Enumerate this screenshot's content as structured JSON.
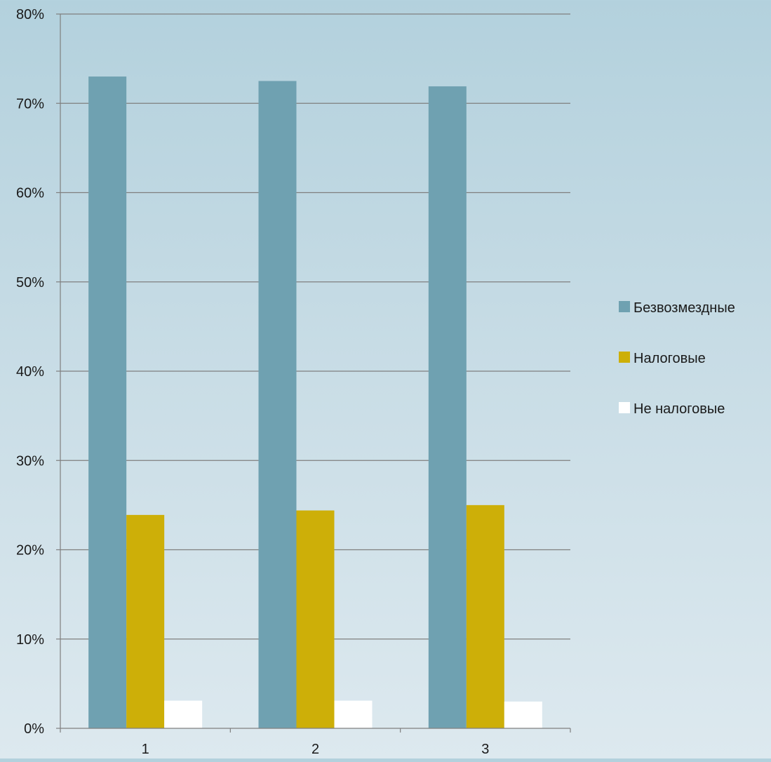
{
  "chart_data": {
    "type": "bar",
    "categories": [
      "1",
      "2",
      "3"
    ],
    "series": [
      {
        "name": "Безвозмездные",
        "values": [
          73.0,
          72.5,
          71.9
        ],
        "color": "#6fa1b1"
      },
      {
        "name": "Налоговые",
        "values": [
          23.9,
          24.4,
          25.0
        ],
        "color": "#cdaf08"
      },
      {
        "name": "Не налоговые",
        "values": [
          3.1,
          3.1,
          3.0
        ],
        "color": "#ffffff"
      }
    ],
    "ylim": [
      0,
      80
    ],
    "yticks": [
      "0%",
      "10%",
      "20%",
      "30%",
      "40%",
      "50%",
      "60%",
      "70%",
      "80%"
    ],
    "grid": true,
    "legend_position": "right",
    "title": "",
    "xlabel": "",
    "ylabel": ""
  },
  "colors": {
    "gridline": "#7f7f7f",
    "axis": "#7f7f7f"
  }
}
